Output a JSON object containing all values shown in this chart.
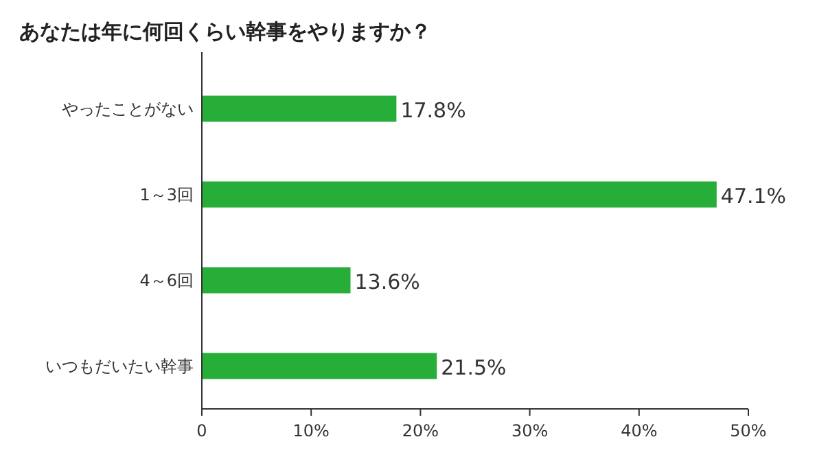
{
  "chart_data": {
    "type": "bar",
    "orientation": "horizontal",
    "title": "あなたは年に何回くらい幹事をやりますか？",
    "categories": [
      "やったことがない",
      "1～3回",
      "4～6回",
      "いつもだいたい幹事"
    ],
    "values": [
      17.8,
      47.1,
      13.6,
      21.5
    ],
    "value_labels": [
      "17.8%",
      "47.1%",
      "13.6%",
      "21.5%"
    ],
    "color": "#27ae38",
    "xlim": [
      0,
      50
    ],
    "xticks": [
      0,
      {
        "value": 10,
        "label": "10%"
      },
      {
        "value": 20,
        "label": "20%"
      },
      {
        "value": 30,
        "label": "30%"
      },
      {
        "value": 40,
        "label": "40%"
      },
      {
        "value": 50,
        "label": "50%"
      }
    ],
    "grid": false
  }
}
